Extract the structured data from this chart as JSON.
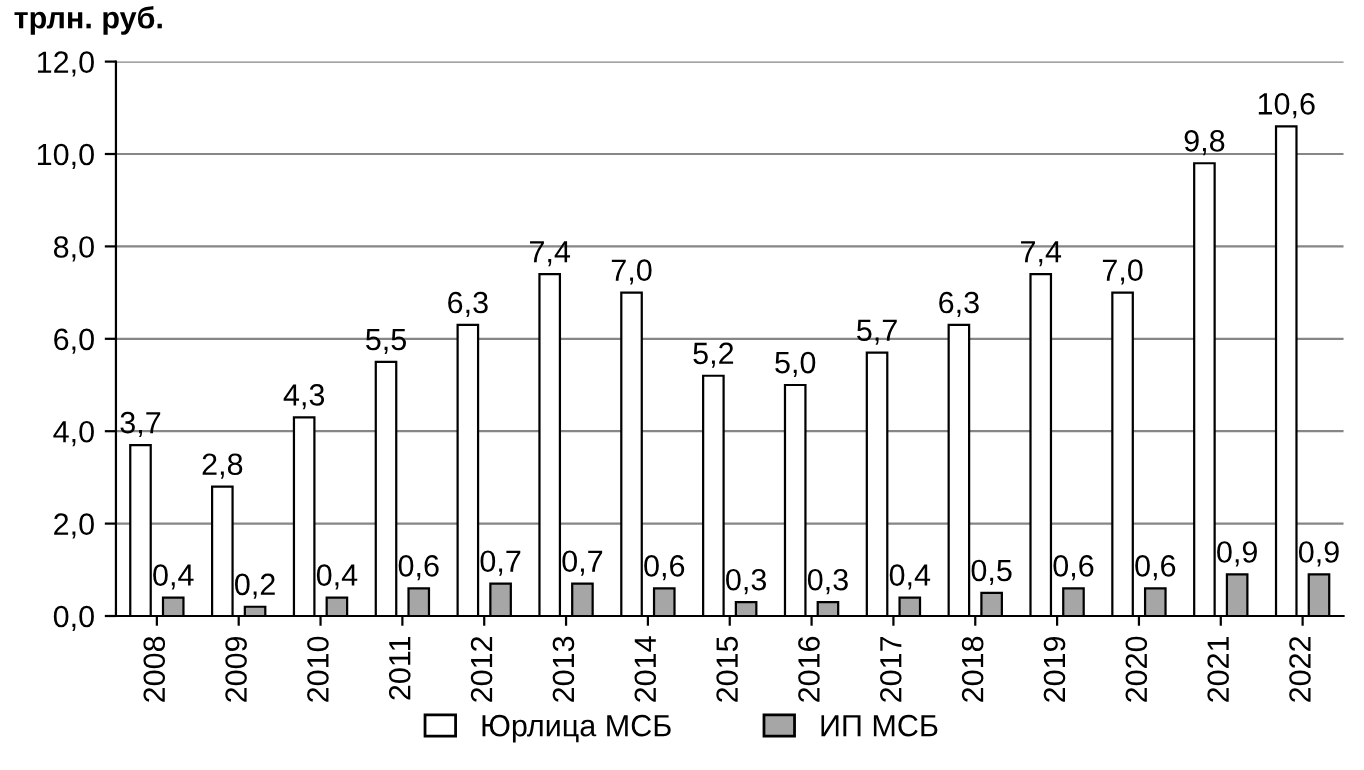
{
  "chart_data": {
    "type": "bar",
    "ylabel": "трлн. руб.",
    "categories": [
      "2008",
      "2009",
      "2010",
      "2011",
      "2012",
      "2013",
      "2014",
      "2015",
      "2016",
      "2017",
      "2018",
      "2019",
      "2020",
      "2021",
      "2022"
    ],
    "series": [
      {
        "name": "Юрлица МСБ",
        "color": "#ffffff",
        "values": [
          3.7,
          2.8,
          4.3,
          5.5,
          6.3,
          7.4,
          7.0,
          5.2,
          5.0,
          5.7,
          6.3,
          7.4,
          7.0,
          9.8,
          10.6
        ],
        "value_labels": [
          "3,7",
          "2,8",
          "4,3",
          "5,5",
          "6,3",
          "7,4",
          "7,0",
          "5,2",
          "5,0",
          "5,7",
          "6,3",
          "7,4",
          "7,0",
          "9,8",
          "10,6"
        ]
      },
      {
        "name": "ИП МСБ",
        "color": "#a6a6a6",
        "values": [
          0.4,
          0.2,
          0.4,
          0.6,
          0.7,
          0.7,
          0.6,
          0.3,
          0.3,
          0.4,
          0.5,
          0.6,
          0.6,
          0.9,
          0.9
        ],
        "value_labels": [
          "0,4",
          "0,2",
          "0,4",
          "0,6",
          "0,7",
          "0,7",
          "0,6",
          "0,3",
          "0,3",
          "0,4",
          "0,5",
          "0,6",
          "0,6",
          "0,9",
          "0,9"
        ]
      }
    ],
    "ylim": [
      0,
      12
    ],
    "yticks": [
      {
        "value": 0,
        "label": "0,0"
      },
      {
        "value": 2,
        "label": "2,0"
      },
      {
        "value": 4,
        "label": "4,0"
      },
      {
        "value": 6,
        "label": "6,0"
      },
      {
        "value": 8,
        "label": "8,0"
      },
      {
        "value": 10,
        "label": "10,0"
      },
      {
        "value": 12,
        "label": "12,0"
      }
    ],
    "grid": "y",
    "legend": "bottom"
  }
}
